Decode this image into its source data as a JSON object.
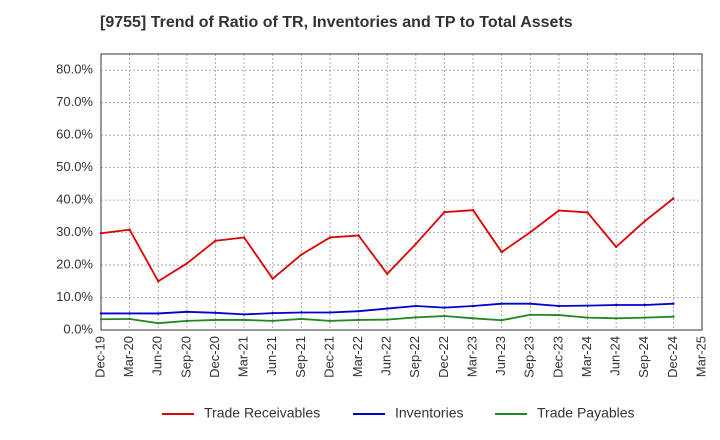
{
  "chart_data": {
    "type": "line",
    "title": "[9755]  Trend of Ratio of TR, Inventories and TP to Total Assets",
    "xlabel": "",
    "ylabel": "",
    "ylim": [
      0,
      85
    ],
    "grid": true,
    "legend_position": "bottom",
    "y_ticks": [
      "0.0%",
      "10.0%",
      "20.0%",
      "30.0%",
      "40.0%",
      "50.0%",
      "60.0%",
      "70.0%",
      "80.0%"
    ],
    "y_tick_values": [
      0,
      10,
      20,
      30,
      40,
      50,
      60,
      70,
      80
    ],
    "x_ticks": [
      "Dec-19",
      "Mar-20",
      "Jun-20",
      "Sep-20",
      "Dec-20",
      "Mar-21",
      "Jun-21",
      "Sep-21",
      "Dec-21",
      "Mar-22",
      "Jun-22",
      "Sep-22",
      "Dec-22",
      "Mar-23",
      "Jun-23",
      "Sep-23",
      "Dec-23",
      "Mar-24",
      "Jun-24",
      "Sep-24",
      "Dec-24",
      "Mar-25"
    ],
    "x": [
      "Dec-19",
      "Mar-20",
      "Jun-20",
      "Sep-20",
      "Dec-20",
      "Mar-21",
      "Jun-21",
      "Sep-21",
      "Dec-21",
      "Mar-22",
      "Jun-22",
      "Sep-22",
      "Dec-22",
      "Mar-23",
      "Jun-23",
      "Sep-23",
      "Dec-23",
      "Mar-24",
      "Jun-24",
      "Sep-24",
      "Dec-24"
    ],
    "series": [
      {
        "name": "Trade Receivables",
        "color": "#dd0000",
        "values": [
          29.8,
          30.9,
          15.0,
          20.5,
          27.5,
          28.5,
          15.8,
          23.2,
          28.5,
          29.1,
          17.3,
          26.5,
          36.3,
          36.9,
          24.0,
          30.1,
          36.8,
          36.2,
          25.6,
          33.5,
          40.5
        ]
      },
      {
        "name": "Inventories",
        "color": "#0000cc",
        "values": [
          5.1,
          5.1,
          5.1,
          5.6,
          5.3,
          4.8,
          5.2,
          5.4,
          5.4,
          5.8,
          6.6,
          7.4,
          6.9,
          7.4,
          8.1,
          8.1,
          7.4,
          7.5,
          7.7,
          7.7,
          8.1
        ]
      },
      {
        "name": "Trade Payables",
        "color": "#228822",
        "values": [
          3.3,
          3.4,
          2.1,
          2.8,
          3.1,
          3.1,
          2.8,
          3.4,
          2.8,
          3.1,
          3.2,
          3.9,
          4.3,
          3.6,
          3.0,
          4.7,
          4.6,
          3.8,
          3.6,
          3.8,
          4.1
        ]
      }
    ]
  }
}
